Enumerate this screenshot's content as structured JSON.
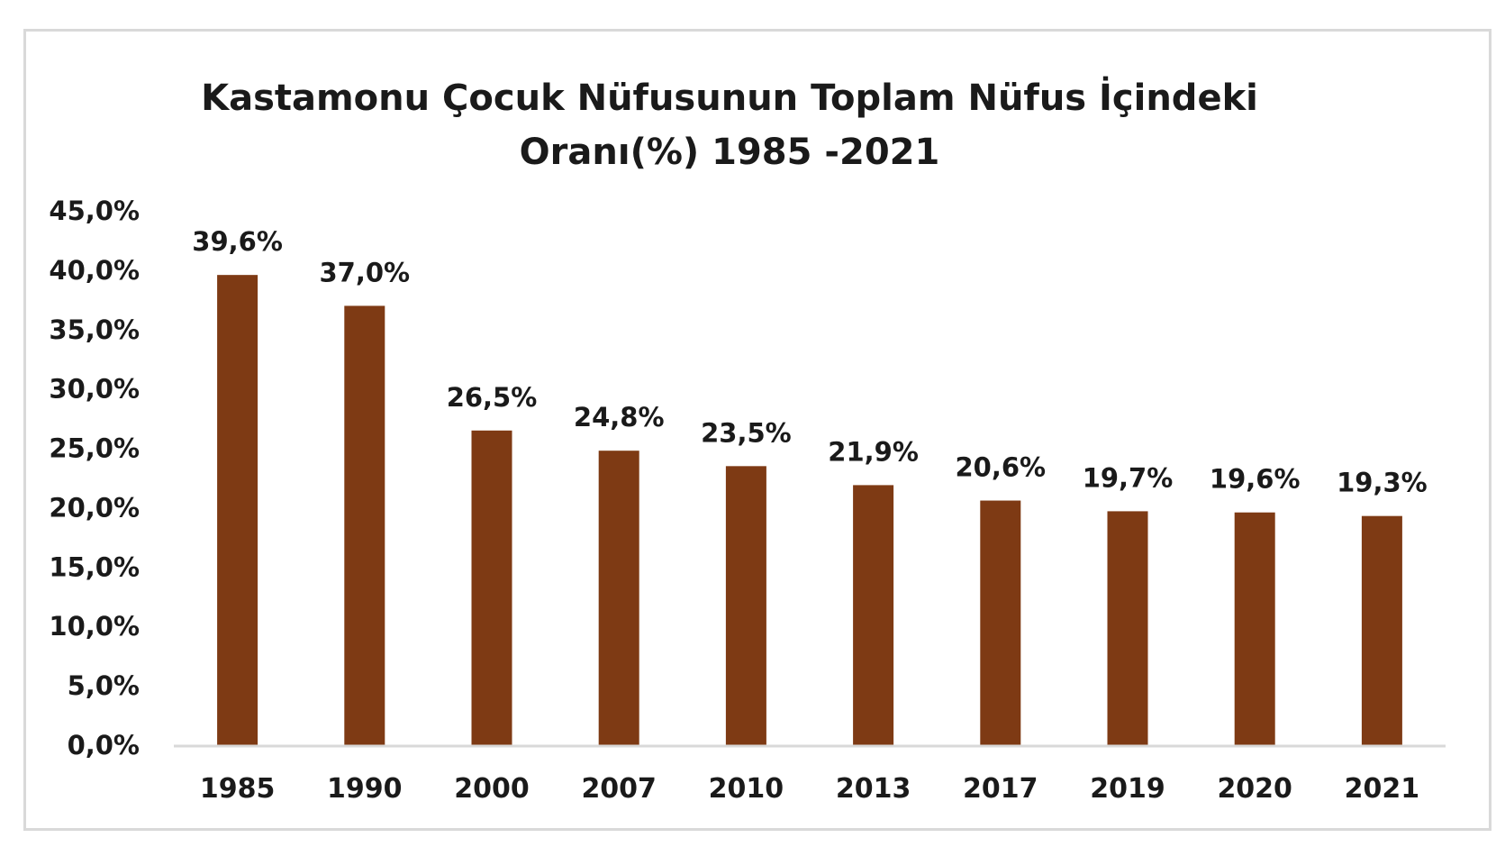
{
  "chart_data": {
    "type": "bar",
    "title_lines": [
      "Kastamonu Çocuk Nüfusunun Toplam Nüfus İçindeki",
      "Oranı(%) 1985 -2021"
    ],
    "categories": [
      "1985",
      "1990",
      "2000",
      "2007",
      "2010",
      "2013",
      "2017",
      "2019",
      "2020",
      "2021"
    ],
    "values": [
      39.6,
      37.0,
      26.5,
      24.8,
      23.5,
      21.9,
      20.6,
      19.7,
      19.6,
      19.3
    ],
    "data_labels": [
      "39,6%",
      "37,0%",
      "26,5%",
      "24,8%",
      "23,5%",
      "21,9%",
      "20,6%",
      "19,7%",
      "19,6%",
      "19,3%"
    ],
    "y_ticks": [
      0,
      5,
      10,
      15,
      20,
      25,
      30,
      35,
      40,
      45
    ],
    "y_tick_labels": [
      "0,0%",
      "5,0%",
      "10,0%",
      "15,0%",
      "20,0%",
      "25,0%",
      "30,0%",
      "35,0%",
      "40,0%",
      "45,0%"
    ],
    "ylim": [
      0,
      45
    ],
    "xlabel": "",
    "ylabel": "",
    "grid": false,
    "legend": "none",
    "bar_color": "#7e3a14",
    "axis_color": "#d9d9d9"
  }
}
